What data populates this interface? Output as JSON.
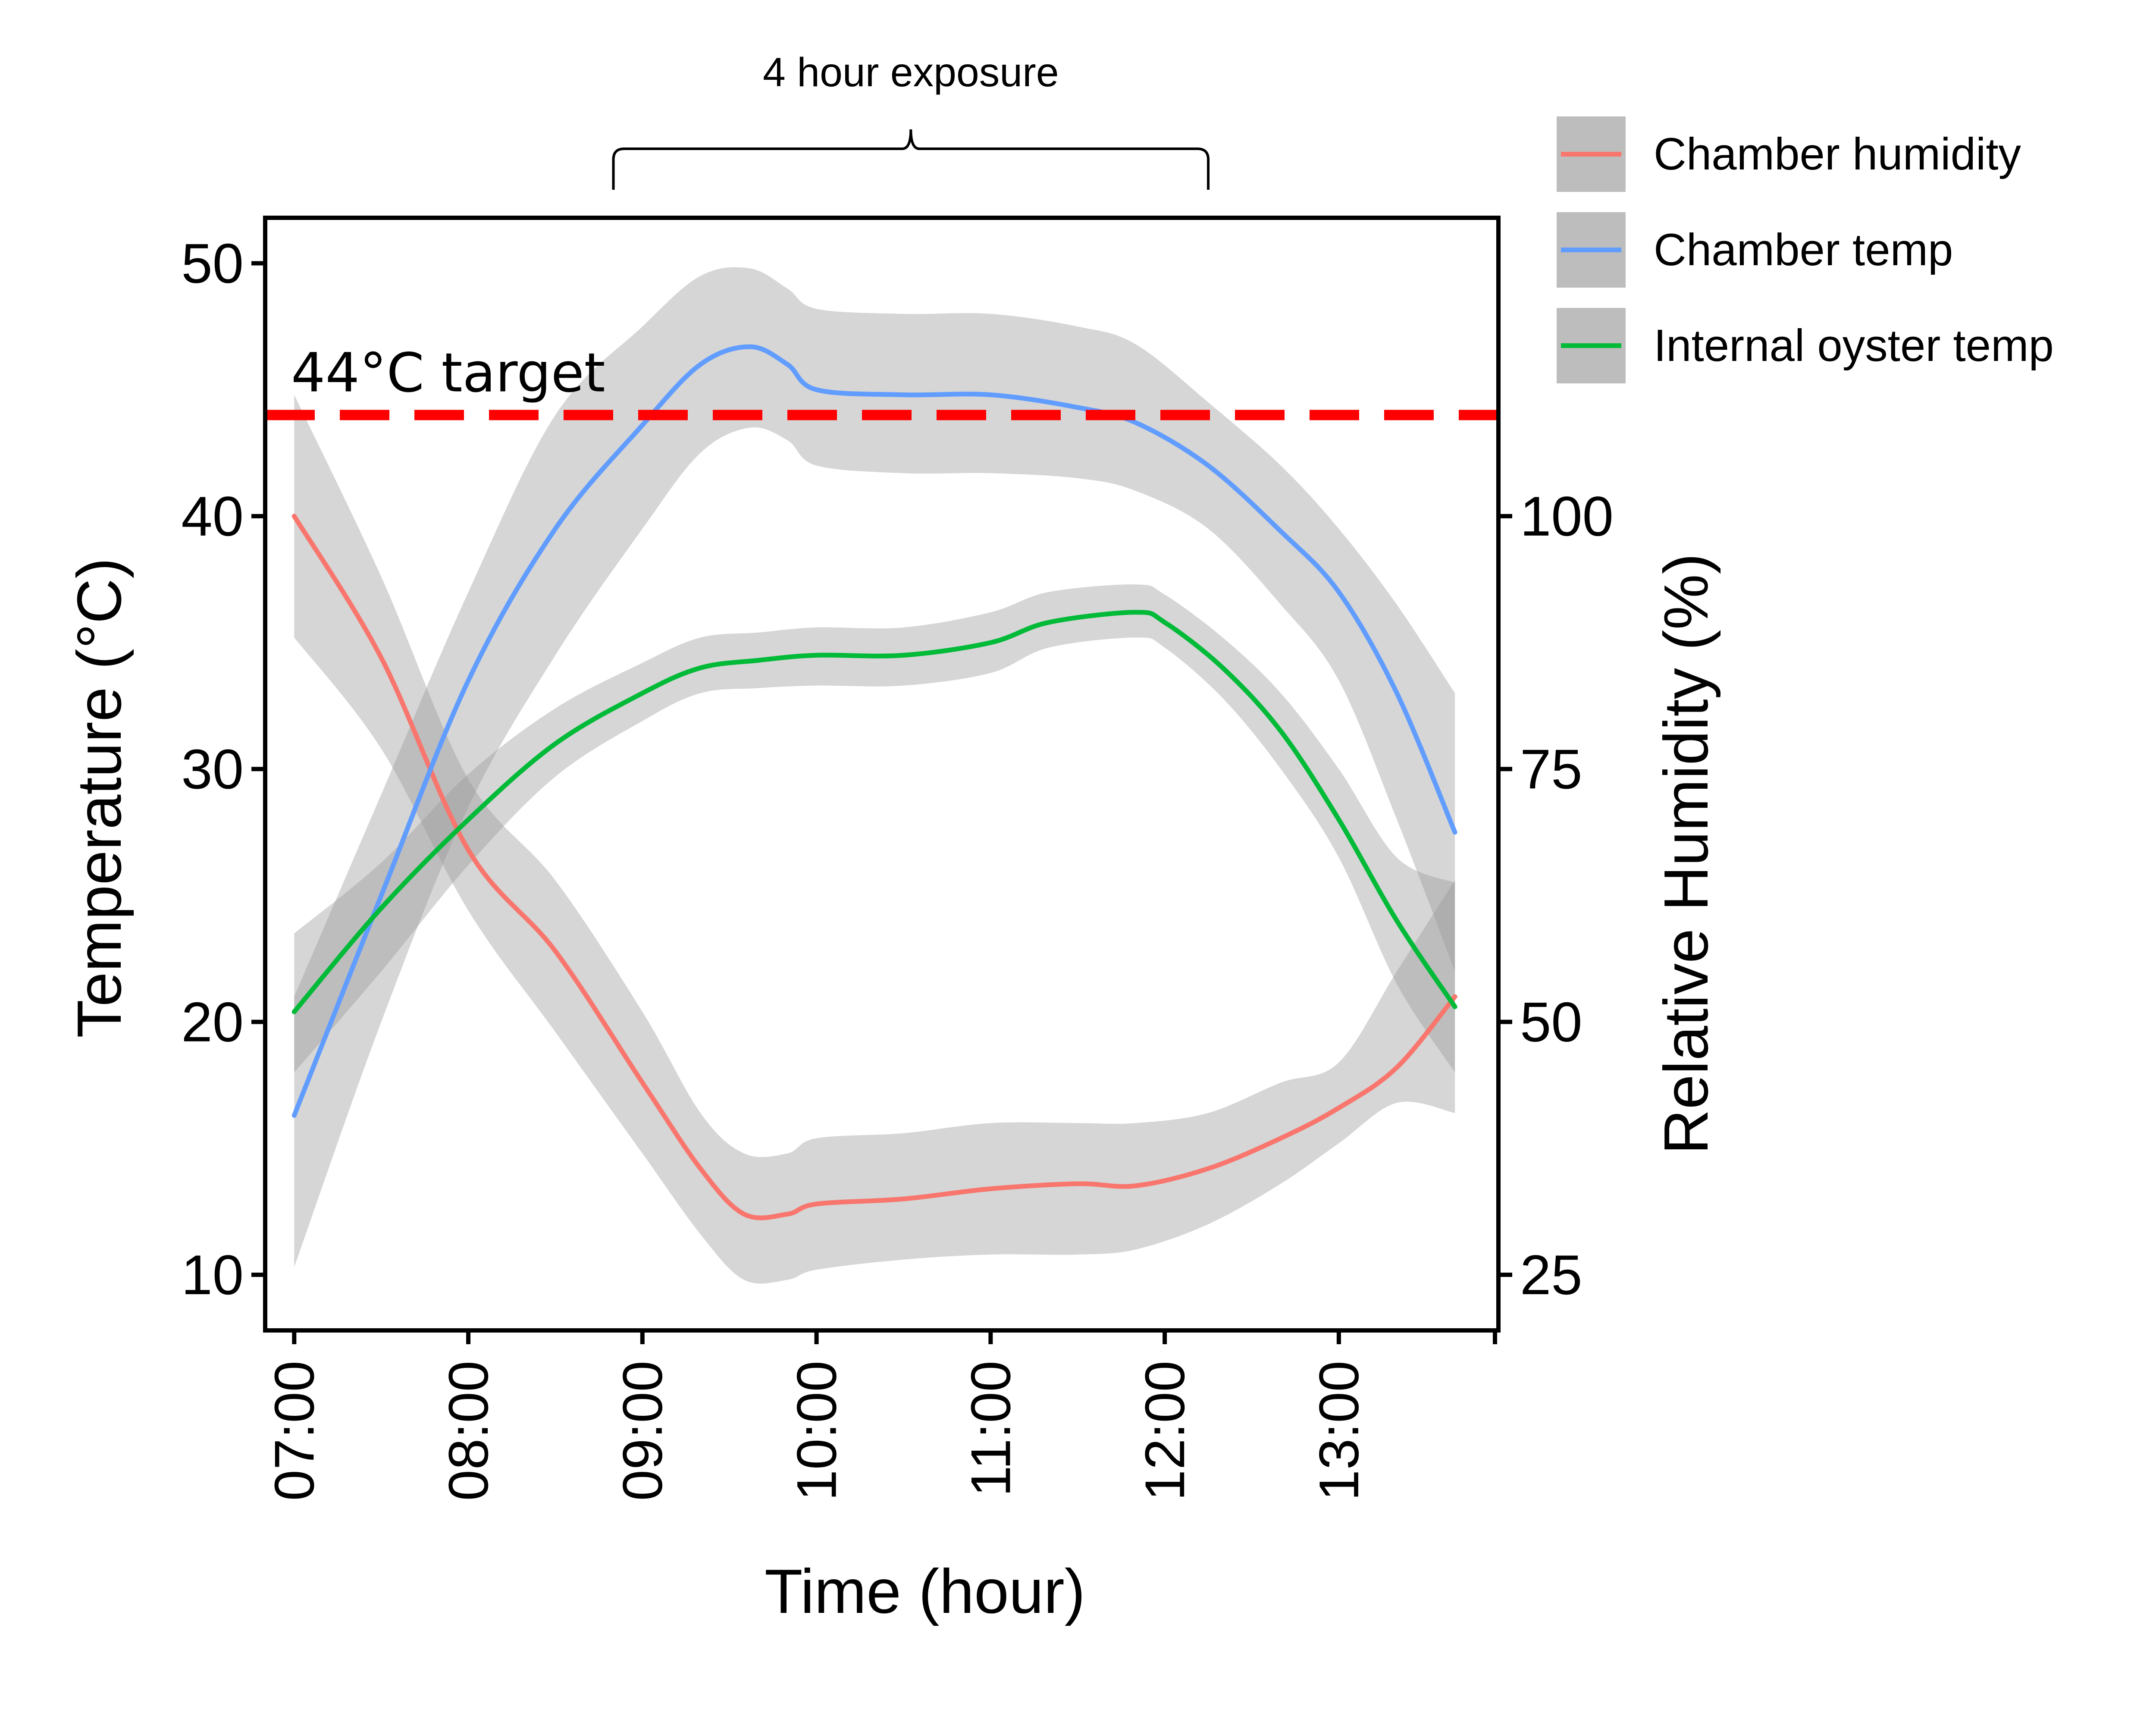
{
  "chart_data": {
    "type": "line",
    "xlabel": "Time (hour)",
    "ylabel": "Temperature (°C)",
    "y2label": "Relative Humidity (%)",
    "x_ticks": [
      "07:00",
      "08:00",
      "09:00",
      "10:00",
      "11:00",
      "12:00",
      "13:00"
    ],
    "xlim": [
      "06:50",
      "13:55"
    ],
    "ylim": [
      7.8,
      51.8
    ],
    "y_ticks": [
      10,
      20,
      30,
      40,
      50
    ],
    "y2_ticks": [
      25,
      50,
      75,
      100
    ],
    "y2_to_y": {
      "scale": 0.4,
      "offset": 0
    },
    "grid": false,
    "legend_position": "top-right",
    "target_line": {
      "value": 44,
      "label": "44°C target",
      "color": "#ff0000"
    },
    "bracket": {
      "label": "4 hour exposure",
      "start": "08:50",
      "end": "12:15"
    },
    "series": [
      {
        "name": "Chamber humidity",
        "color": "#f8766d",
        "axis": "y2",
        "x": [
          "07:00",
          "07:30",
          "08:00",
          "08:30",
          "09:00",
          "09:20",
          "09:35",
          "09:50",
          "10:00",
          "10:30",
          "11:00",
          "11:30",
          "11:50",
          "12:15",
          "12:40",
          "13:00",
          "13:20",
          "13:40"
        ],
        "y": [
          100,
          86,
          67,
          57,
          44,
          35.5,
          31,
          31,
          32,
          32.5,
          33.5,
          34,
          33.8,
          35.5,
          38.5,
          41.5,
          45.5,
          52.5
        ],
        "lower": [
          88,
          77,
          61,
          49,
          37,
          29,
          24.5,
          24.5,
          25.5,
          26.5,
          27,
          27,
          27.5,
          30,
          34,
          38,
          42,
          41
        ],
        "upper": [
          112,
          94,
          74,
          64,
          51,
          41,
          37,
          37,
          38.5,
          39,
          40,
          40,
          40,
          41,
          44,
          46,
          55,
          64
        ]
      },
      {
        "name": "Chamber temp",
        "color": "#619cff",
        "axis": "y",
        "x": [
          "07:00",
          "07:30",
          "08:00",
          "08:30",
          "09:00",
          "09:20",
          "09:37",
          "09:50",
          "10:00",
          "10:30",
          "11:00",
          "11:30",
          "11:50",
          "12:15",
          "12:40",
          "13:00",
          "13:20",
          "13:40"
        ],
        "y": [
          16.3,
          25,
          33.5,
          39.5,
          43.6,
          46,
          46.7,
          46,
          45,
          44.8,
          44.8,
          44.3,
          43.7,
          42,
          39.4,
          37,
          33,
          27.5
        ],
        "lower": [
          10.3,
          20,
          28.5,
          34.5,
          39.5,
          42.5,
          43.5,
          43,
          42,
          41.7,
          41.7,
          41.5,
          41,
          39.5,
          36.5,
          33.5,
          28,
          22
        ],
        "upper": [
          21,
          29,
          37,
          44,
          47.5,
          49.5,
          49.8,
          49,
          48.2,
          48,
          48,
          47.5,
          46.8,
          44.5,
          42,
          39.5,
          36.5,
          33
        ]
      },
      {
        "name": "Internal oyster temp",
        "color": "#00ba38",
        "axis": "y",
        "x": [
          "07:00",
          "07:30",
          "08:00",
          "08:30",
          "09:00",
          "09:20",
          "09:40",
          "10:00",
          "10:30",
          "11:00",
          "11:20",
          "11:50",
          "12:00",
          "12:20",
          "12:40",
          "13:00",
          "13:20",
          "13:40"
        ],
        "y": [
          20.4,
          24.5,
          28,
          31,
          33,
          34,
          34.3,
          34.5,
          34.5,
          35,
          35.8,
          36.2,
          35.8,
          34,
          31.5,
          28,
          24,
          20.6
        ],
        "lower": [
          18,
          22,
          26.2,
          29.7,
          31.9,
          33,
          33.2,
          33.3,
          33.3,
          33.8,
          34.8,
          35.2,
          34.8,
          32.8,
          30,
          26.5,
          21.5,
          18
        ],
        "upper": [
          23.5,
          26.3,
          29.8,
          32.4,
          34.2,
          35.2,
          35.4,
          35.6,
          35.6,
          36.2,
          37,
          37.3,
          36.9,
          35.2,
          33,
          30,
          26.5,
          25.5
        ]
      }
    ]
  }
}
